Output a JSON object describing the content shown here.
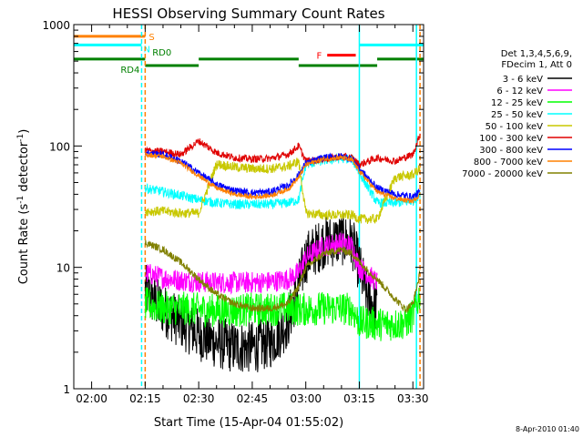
{
  "chart_data": {
    "type": "line",
    "title": "HESSI Observing Summary Count Rates",
    "xlabel": "Start Time (15-Apr-04 01:55:02)",
    "ylabel": "Count Rate (s⁻¹ detector⁻¹)",
    "ylabel_parts": {
      "main": "Count Rate (s",
      "sup1": "-1",
      "mid": " detector",
      "sup2": "-1",
      "end": ")"
    },
    "footer": "8-Apr-2010 01:40",
    "yscale": "log",
    "ylim": [
      1,
      1000
    ],
    "xlim": [
      "01:55",
      "03:33"
    ],
    "x_ticks": [
      "02:00",
      "02:15",
      "02:30",
      "02:45",
      "03:00",
      "03:15",
      "03:30"
    ],
    "y_ticks": [
      "1",
      "10",
      "100",
      "1000"
    ],
    "legend": {
      "position": "right",
      "header": [
        "Det 1,3,4,5,6,9,",
        "FDecim 1, Att 0"
      ],
      "entries": [
        {
          "label": "3 - 6 keV",
          "color": "#000000"
        },
        {
          "label": "6 - 12 keV",
          "color": "#ff00ff"
        },
        {
          "label": "12 - 25 keV",
          "color": "#00ff00"
        },
        {
          "label": "25 - 50 keV",
          "color": "#00ffff"
        },
        {
          "label": "50 - 100 keV",
          "color": "#c8c800"
        },
        {
          "label": "100 - 300 keV",
          "color": "#e00000"
        },
        {
          "label": "300 - 800 keV",
          "color": "#0000ff"
        },
        {
          "label": "800 - 7000 keV",
          "color": "#ff8000"
        },
        {
          "label": "7000 - 20000 keV",
          "color": "#808000"
        }
      ]
    },
    "flag_bars": [
      {
        "label": "S",
        "color": "#ff8000",
        "value": 800,
        "segments": [
          [
            "01:55",
            "02:15"
          ]
        ]
      },
      {
        "label": "N",
        "color": "#00ffff",
        "value": 680,
        "segments": [
          [
            "01:55",
            "02:14"
          ],
          [
            "03:15",
            "03:33"
          ]
        ]
      },
      {
        "label": "F",
        "color": "#ff0000",
        "value": 560,
        "segments": [
          [
            "03:06",
            "03:14"
          ]
        ]
      },
      {
        "label": "RD0",
        "color": "#008000",
        "value": 520,
        "segments": [
          [
            "01:55",
            "02:15"
          ],
          [
            "02:30",
            "02:58"
          ],
          [
            "03:20",
            "03:33"
          ]
        ]
      },
      {
        "label": "RD4",
        "color": "#008000",
        "value": 460,
        "segments": [
          [
            "02:15",
            "02:30"
          ],
          [
            "02:58",
            "03:20"
          ]
        ]
      }
    ],
    "vertical_markers": [
      {
        "x": "02:14",
        "color": "#00ffff",
        "style": "dashed"
      },
      {
        "x": "02:15",
        "color": "#ff8000",
        "style": "dashed"
      },
      {
        "x": "03:15",
        "color": "#00ffff",
        "style": "solid"
      },
      {
        "x": "03:31",
        "color": "#00ffff",
        "style": "solid"
      },
      {
        "x": "03:32",
        "color": "#ff8000",
        "style": "dashed"
      }
    ],
    "series": [
      {
        "name": "3 - 6 keV",
        "color": "#000000",
        "noise": 0.22,
        "x": [
          "02:15",
          "02:17",
          "02:20",
          "02:25",
          "02:30",
          "02:35",
          "02:40",
          "02:45",
          "02:50",
          "02:55",
          "02:58",
          "03:00",
          "03:05",
          "03:10",
          "03:13",
          "03:15",
          "03:17",
          "03:20"
        ],
        "y": [
          6.5,
          5.5,
          4.5,
          3.5,
          2.8,
          2.4,
          2.2,
          2.2,
          2.4,
          3.5,
          7,
          12,
          16,
          17,
          16,
          10,
          6,
          4.5
        ]
      },
      {
        "name": "6 - 12 keV",
        "color": "#ff00ff",
        "noise": 0.09,
        "x": [
          "02:15",
          "02:20",
          "02:25",
          "02:30",
          "02:35",
          "02:40",
          "02:45",
          "02:50",
          "02:55",
          "02:58",
          "03:00",
          "03:05",
          "03:10",
          "03:13",
          "03:15",
          "03:20"
        ],
        "y": [
          9,
          8.2,
          7.8,
          7.6,
          7.5,
          7.5,
          7.5,
          7.6,
          8,
          9,
          12,
          15,
          16,
          15,
          10,
          7.5
        ]
      },
      {
        "name": "12 - 25 keV",
        "color": "#00ff00",
        "noise": 0.14,
        "x": [
          "02:15",
          "02:20",
          "02:25",
          "02:30",
          "02:35",
          "02:40",
          "02:45",
          "02:50",
          "02:55",
          "02:58",
          "03:00",
          "03:05",
          "03:10",
          "03:13",
          "03:15",
          "03:18",
          "03:20",
          "03:25",
          "03:28",
          "03:30",
          "03:32"
        ],
        "y": [
          5,
          4.6,
          4.6,
          4.5,
          4.4,
          4.4,
          4.5,
          4.5,
          4.6,
          4.5,
          4.5,
          4.6,
          4.6,
          4.5,
          3.5,
          3.5,
          3.4,
          3.4,
          3.5,
          4,
          6
        ]
      },
      {
        "name": "25 - 50 keV",
        "color": "#00ffff",
        "noise": 0.04,
        "x": [
          "02:15",
          "02:20",
          "02:25",
          "02:30",
          "02:35",
          "02:40",
          "02:45",
          "02:50",
          "02:55",
          "02:58",
          "03:00",
          "03:05",
          "03:10",
          "03:13",
          "03:15",
          "03:20",
          "03:25",
          "03:30",
          "03:32"
        ],
        "y": [
          45,
          42,
          39,
          36,
          34,
          33,
          33,
          33,
          34,
          36,
          70,
          76,
          79,
          78,
          60,
          34,
          34,
          35,
          40
        ]
      },
      {
        "name": "50 - 100 keV",
        "color": "#c8c800",
        "noise": 0.04,
        "x": [
          "02:15",
          "02:20",
          "02:25",
          "02:30",
          "02:35",
          "02:40",
          "02:45",
          "02:50",
          "02:55",
          "02:58",
          "03:00",
          "03:05",
          "03:10",
          "03:13",
          "03:15",
          "03:20",
          "03:25",
          "03:30",
          "03:32"
        ],
        "y": [
          29,
          29,
          28,
          28,
          71,
          67,
          65,
          65,
          68,
          75,
          28,
          27,
          27,
          27,
          25,
          25,
          55,
          58,
          65
        ]
      },
      {
        "name": "100 - 300 keV",
        "color": "#e00000",
        "noise": 0.03,
        "x": [
          "02:15",
          "02:20",
          "02:25",
          "02:30",
          "02:35",
          "02:40",
          "02:45",
          "02:50",
          "02:55",
          "02:58",
          "03:00",
          "03:05",
          "03:10",
          "03:13",
          "03:15",
          "03:20",
          "03:25",
          "03:30",
          "03:32"
        ],
        "y": [
          92,
          90,
          85,
          110,
          88,
          80,
          78,
          79,
          85,
          100,
          75,
          78,
          82,
          80,
          70,
          80,
          75,
          85,
          125
        ]
      },
      {
        "name": "300 - 800 keV",
        "color": "#0000ff",
        "noise": 0.03,
        "x": [
          "02:15",
          "02:20",
          "02:25",
          "02:30",
          "02:35",
          "02:40",
          "02:45",
          "02:50",
          "02:55",
          "02:58",
          "03:00",
          "03:05",
          "03:10",
          "03:13",
          "03:15",
          "03:20",
          "03:25",
          "03:30",
          "03:32"
        ],
        "y": [
          88,
          85,
          75,
          60,
          48,
          43,
          41,
          42,
          47,
          58,
          72,
          80,
          82,
          78,
          65,
          45,
          40,
          38,
          42
        ]
      },
      {
        "name": "800 - 7000 keV",
        "color": "#ff8000",
        "noise": 0.02,
        "x": [
          "02:15",
          "02:20",
          "02:25",
          "02:30",
          "02:35",
          "02:40",
          "02:45",
          "02:50",
          "02:55",
          "02:58",
          "03:00",
          "03:05",
          "03:10",
          "03:13",
          "03:15",
          "03:20",
          "03:25",
          "03:30",
          "03:32"
        ],
        "y": [
          85,
          82,
          72,
          57,
          45,
          40,
          38,
          39,
          44,
          55,
          70,
          78,
          80,
          76,
          62,
          42,
          37,
          35,
          40
        ]
      },
      {
        "name": "7000 - 20000 keV",
        "color": "#808000",
        "noise": 0.03,
        "x": [
          "02:15",
          "02:20",
          "02:25",
          "02:30",
          "02:35",
          "02:40",
          "02:45",
          "02:50",
          "02:55",
          "02:58",
          "03:00",
          "03:05",
          "03:10",
          "03:13",
          "03:15",
          "03:20",
          "03:25",
          "03:28",
          "03:30",
          "03:32"
        ],
        "y": [
          16,
          14,
          11,
          8,
          6,
          5,
          4.6,
          4.6,
          5,
          7,
          10,
          13,
          14,
          13,
          11,
          8,
          5.5,
          4.5,
          5,
          9
        ]
      }
    ]
  }
}
